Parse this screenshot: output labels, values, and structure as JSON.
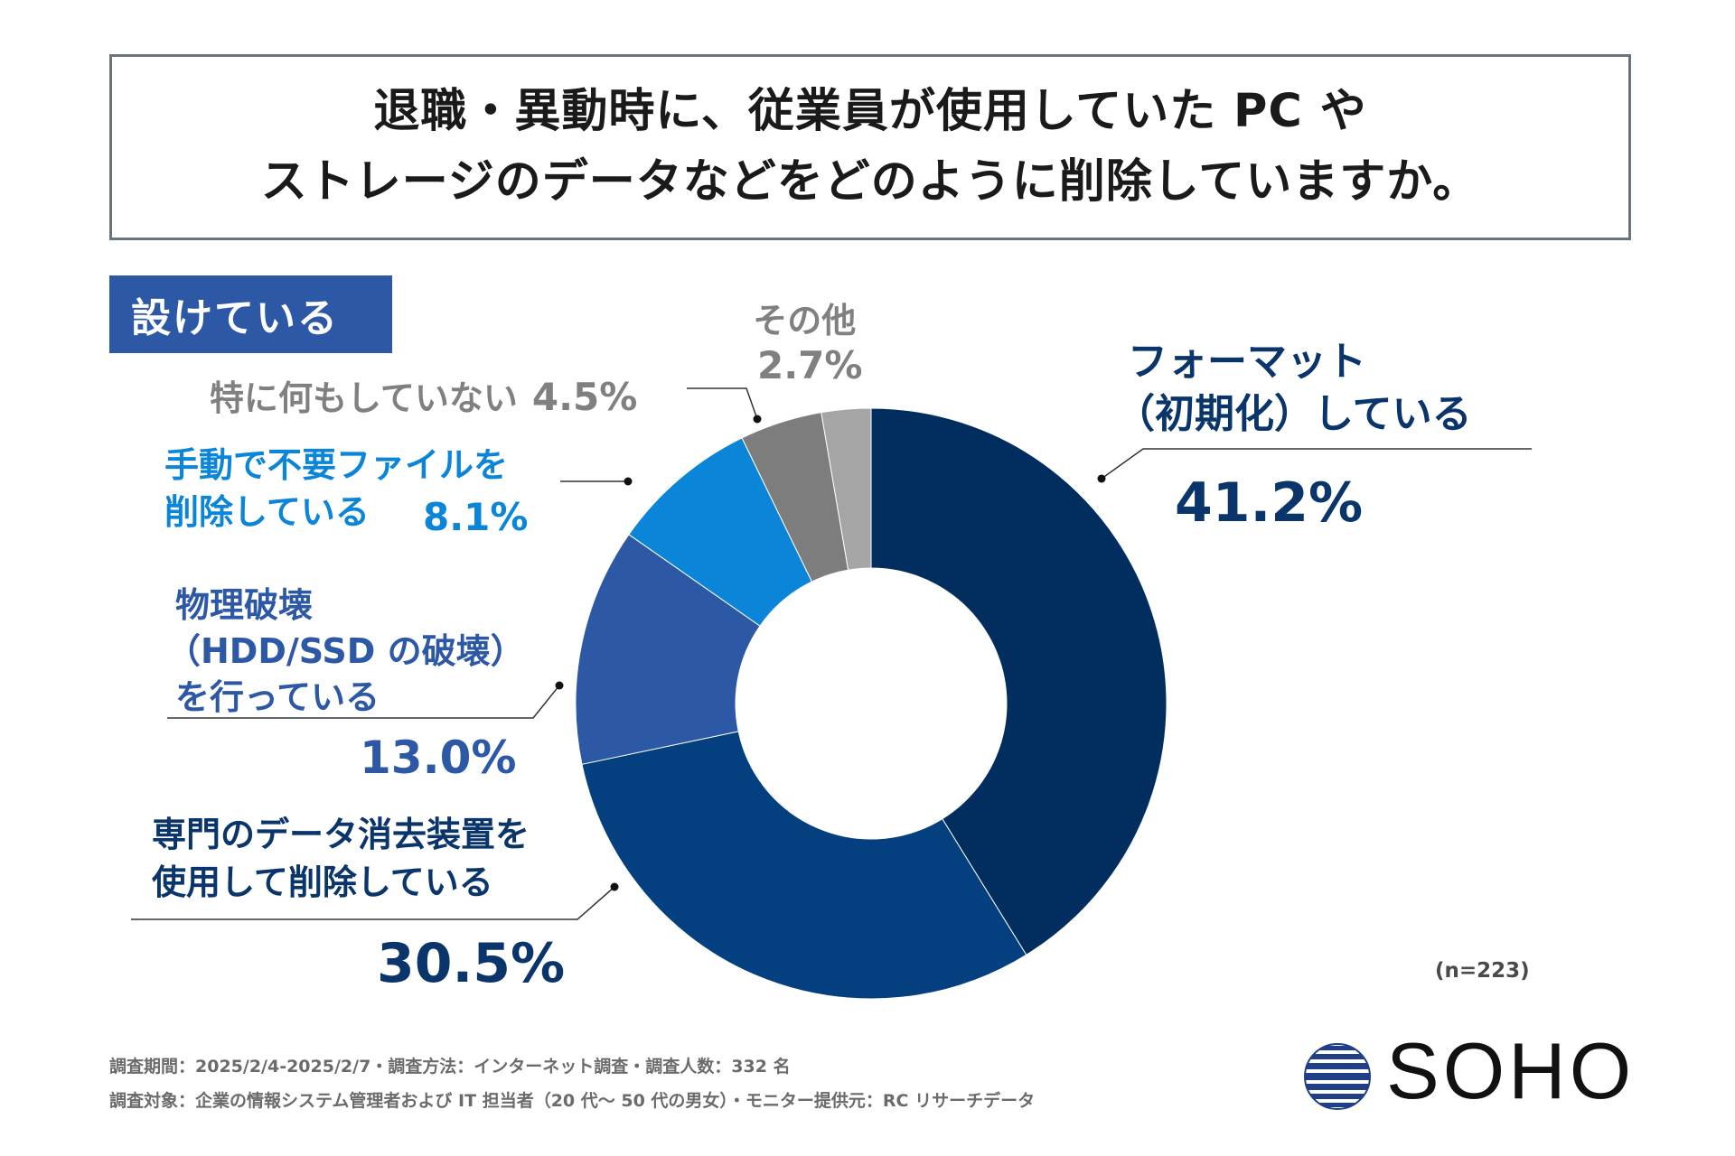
{
  "title": {
    "line1": "退職・異動時に、従業員が使用していた PC や",
    "line2": "ストレージのデータなどをどのように削除していますか。"
  },
  "tag": "設けている",
  "chart_data": {
    "type": "pie",
    "donut": true,
    "series": [
      {
        "name": "フォーマット（初期化）している",
        "value": 41.2,
        "color": "#022e5f"
      },
      {
        "name": "専門のデータ消去装置を使用して削除している",
        "value": 30.5,
        "color": "#043f80"
      },
      {
        "name": "物理破壊（HDD/SSD の破壊）を行っている",
        "value": 13.0,
        "color": "#2d58a6"
      },
      {
        "name": "手動で不要ファイルを削除している",
        "value": 8.1,
        "color": "#0b85d8"
      },
      {
        "name": "特に何もしていない",
        "value": 4.5,
        "color": "#7d7d7d"
      },
      {
        "name": "その他",
        "value": 2.7,
        "color": "#a5a5a5"
      }
    ],
    "n_note": "(n=223)"
  },
  "labels": {
    "format": {
      "line1": "フォーマット",
      "line2": "（初期化）している",
      "pct": "41.2%"
    },
    "eraser": {
      "line1": "専門のデータ消去装置を",
      "line2": "使用して削除している",
      "pct": "30.5%"
    },
    "physical": {
      "line1": "物理破壊",
      "line2": "（HDD/SSD の破壊）",
      "line3": "を行っている",
      "pct": "13.0%"
    },
    "manual": {
      "line1": "手動で不要ファイルを",
      "line2": "削除している",
      "pct": "8.1%"
    },
    "nothing": {
      "text": "特に何もしていない",
      "pct": "4.5%"
    },
    "other": {
      "text": "その他",
      "pct": "2.7%"
    }
  },
  "footer": {
    "line1": "調査期間：2025/2/4-2025/2/7・調査方法：インターネット調査・調査人数：332 名",
    "line2": "調査対象：企業の情報システム管理者および IT 担当者（20 代〜 50 代の男女）・モニター提供元：RC リサーチデータ"
  },
  "logo": {
    "text": "SOHO"
  }
}
